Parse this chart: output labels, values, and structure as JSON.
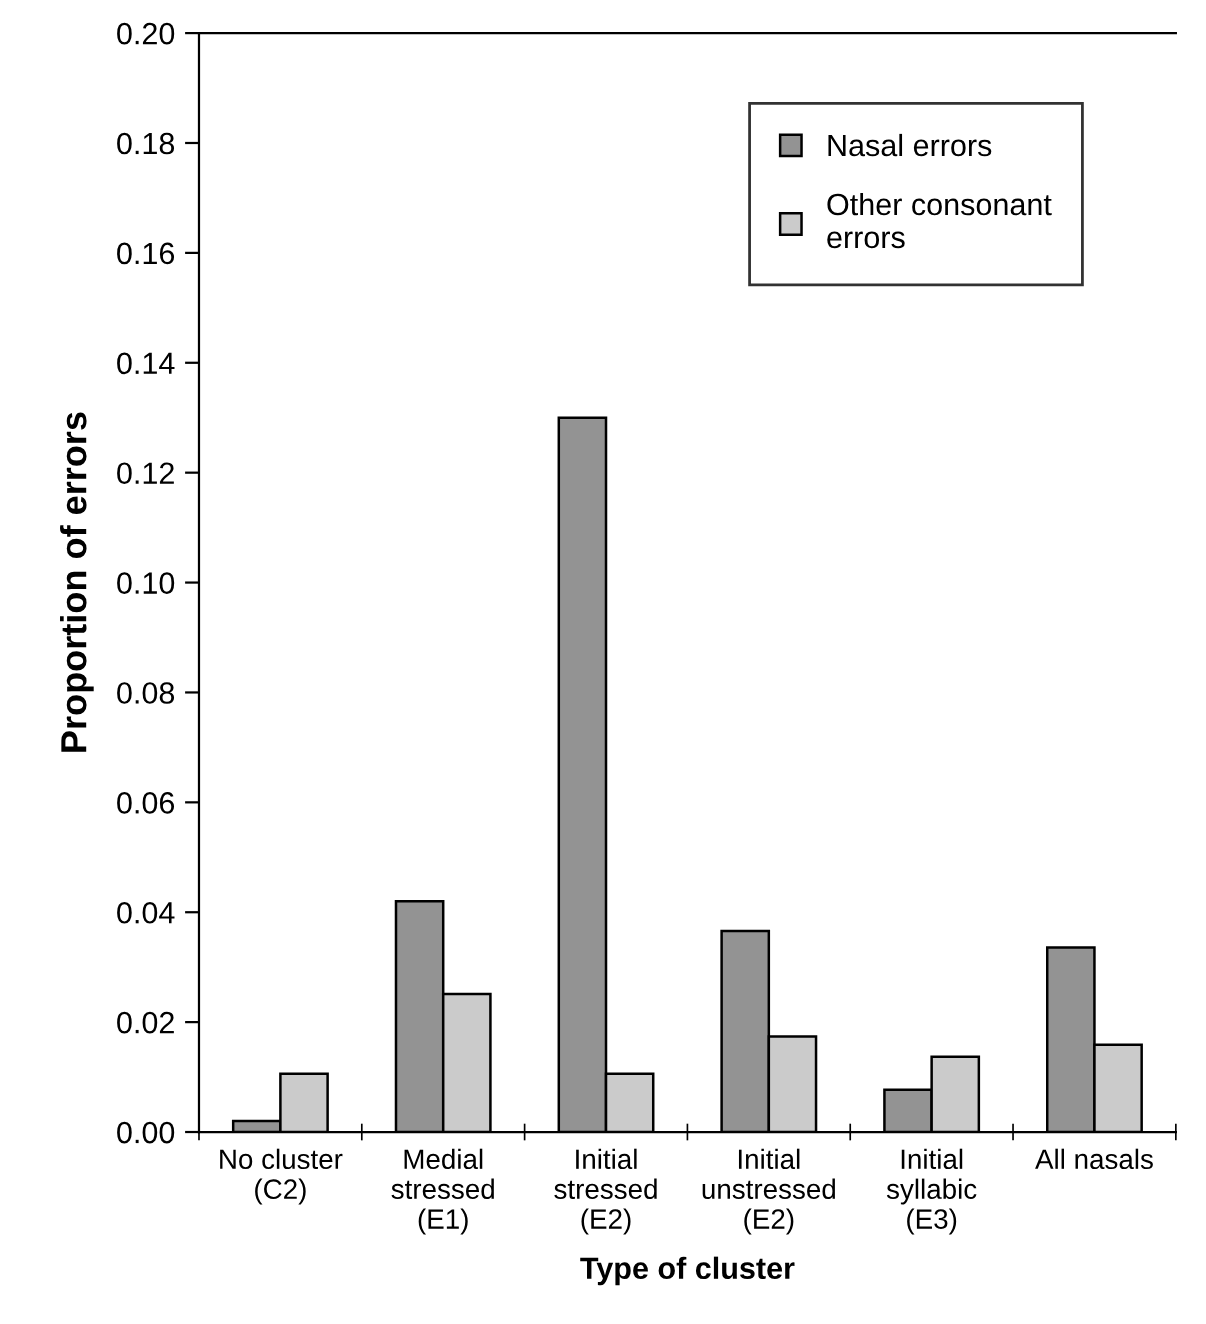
{
  "chart_data": {
    "type": "bar",
    "xlabel": "Type of cluster",
    "ylabel": "Proportion of errors",
    "categories": [
      "No cluster\n(C2)",
      "Medial\nstressed\n(E1)",
      "Initial\nstressed\n(E2)",
      "Initial\nunstressed\n(E2)",
      "Initial\nsyllabic\n(E3)",
      "All nasals"
    ],
    "series": [
      {
        "name": "Nasal errors",
        "color": "#939393",
        "values": [
          0.002,
          0.042,
          0.13,
          0.0366,
          0.0077,
          0.0336
        ]
      },
      {
        "name": "Other consonant\nerrors",
        "color": "#cbcbcb",
        "values": [
          0.0106,
          0.0251,
          0.0106,
          0.0174,
          0.0137,
          0.0159
        ]
      }
    ],
    "ylim": [
      0,
      0.2
    ],
    "yticks": [
      {
        "value": 0,
        "label": "0.00"
      },
      {
        "value": 0.02,
        "label": "0.02"
      },
      {
        "value": 0.04,
        "label": "0.04"
      },
      {
        "value": 0.06,
        "label": "0.06"
      },
      {
        "value": 0.08,
        "label": "0.08"
      },
      {
        "value": 0.1,
        "label": "0.10"
      },
      {
        "value": 0.12,
        "label": "0.12"
      },
      {
        "value": 0.14,
        "label": "0.14"
      },
      {
        "value": 0.16,
        "label": "0.16"
      },
      {
        "value": 0.18,
        "label": "0.18"
      },
      {
        "value": 0.2,
        "label": "0.20"
      }
    ],
    "grid": false,
    "legend": "top right"
  }
}
